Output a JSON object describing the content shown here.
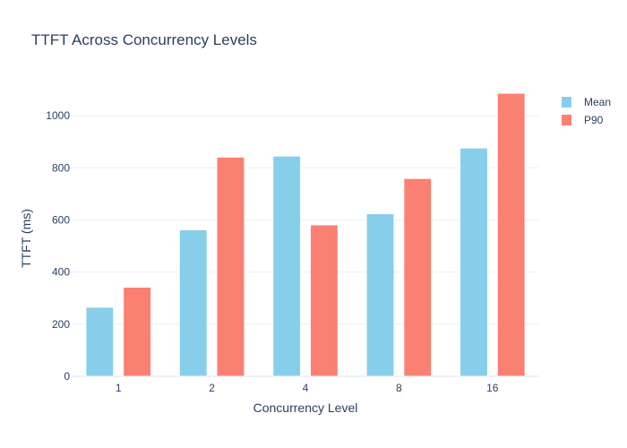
{
  "chart_data": {
    "type": "bar",
    "title": "TTFT Across Concurrency Levels",
    "xlabel": "Concurrency Level",
    "ylabel": "TTFT (ms)",
    "categories": [
      "1",
      "2",
      "4",
      "8",
      "16"
    ],
    "series": [
      {
        "name": "Mean",
        "color": "#87ceeb",
        "values": [
          265,
          562,
          845,
          624,
          876
        ]
      },
      {
        "name": "P90",
        "color": "#fa8072",
        "values": [
          342,
          841,
          581,
          759,
          1086
        ]
      }
    ],
    "ylim": [
      0,
      1100
    ],
    "yticks": [
      0,
      200,
      400,
      600,
      800,
      1000
    ],
    "grid": true,
    "legend": "top-right"
  }
}
